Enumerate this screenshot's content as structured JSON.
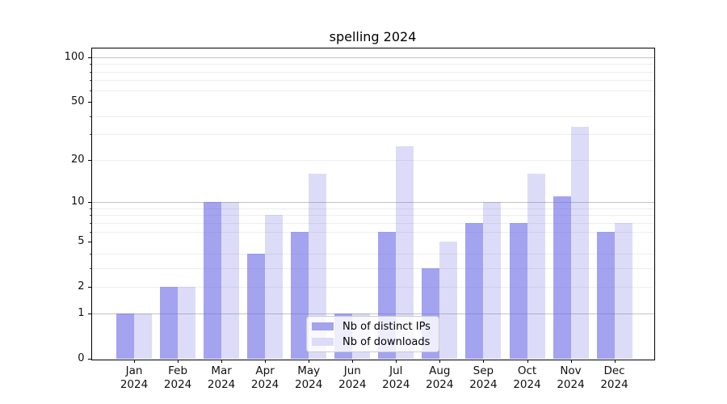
{
  "chart_data": {
    "type": "bar",
    "title": "spelling 2024",
    "xlabel": "",
    "ylabel": "",
    "categories": [
      "Jan",
      "Feb",
      "Mar",
      "Apr",
      "May",
      "Jun",
      "Jul",
      "Aug",
      "Sep",
      "Oct",
      "Nov",
      "Dec"
    ],
    "year_label": "2024",
    "series": [
      {
        "name": "Nb of distinct IPs",
        "values": [
          1,
          2,
          10,
          4,
          6,
          1,
          6,
          3,
          7,
          7,
          11,
          6
        ]
      },
      {
        "name": "Nb of downloads",
        "values": [
          1,
          2,
          10,
          8,
          16,
          1,
          25,
          5,
          10,
          16,
          34,
          7
        ]
      }
    ],
    "y_axis": {
      "scale": "log1p",
      "ylim": [
        0,
        100
      ],
      "tick_labels": [
        0,
        1,
        2,
        5,
        10,
        20,
        50,
        100
      ],
      "major_grid_values": [
        1,
        10,
        100
      ],
      "minor_grid_values": [
        2,
        3,
        4,
        6,
        7,
        8,
        9,
        20,
        30,
        40,
        60,
        70,
        80,
        90
      ],
      "grid": "on"
    },
    "legend_position": "lower center",
    "colors": {
      "bar_base": "#6666e6",
      "series_fills": [
        "rgba(102,102,230,0.60)",
        "rgba(102,102,230,0.23)"
      ],
      "legend_swatches": [
        "#a3a3ee",
        "#dcdcf8"
      ],
      "grid_major": "#c3c3c3",
      "grid_minor": "#ededed",
      "text": "#000000"
    }
  }
}
